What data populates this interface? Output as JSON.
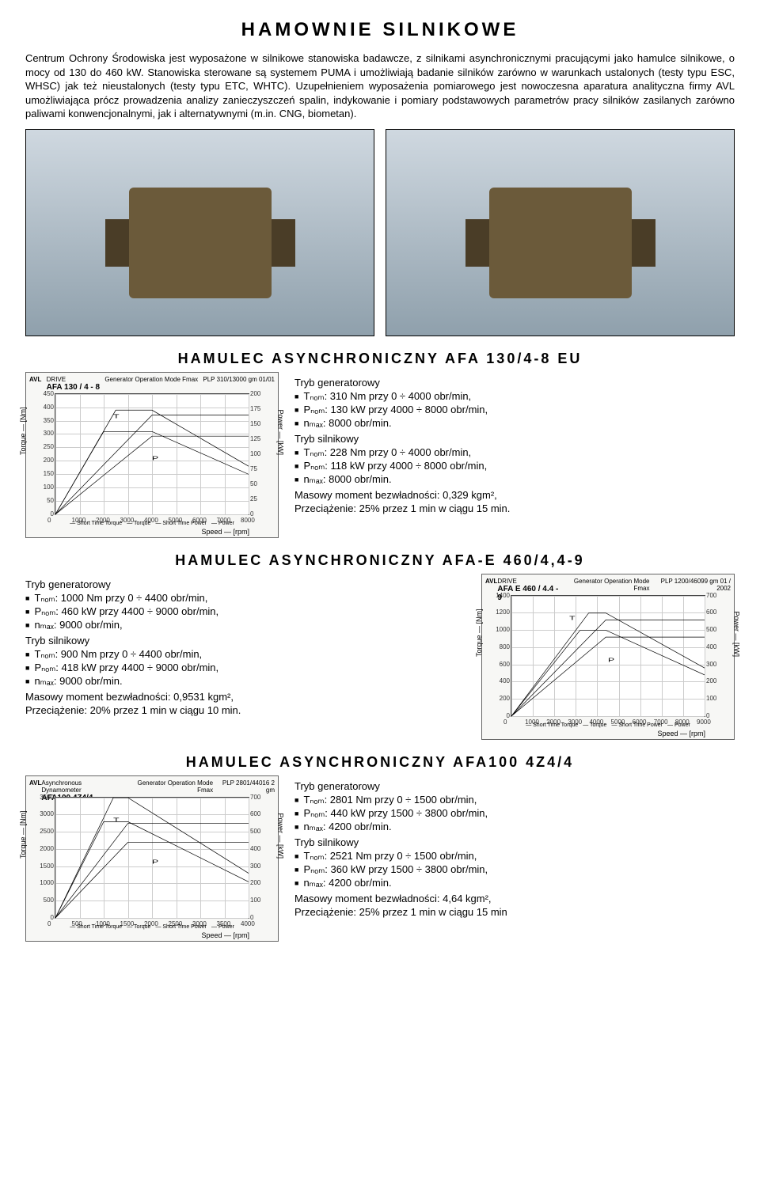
{
  "page_title": "HAMOWNIE SILNIKOWE",
  "intro": "Centrum Ochrony Środowiska jest wyposażone w silnikowe stanowiska badawcze, z silnikami asynchronicznymi pracującymi jako hamulce silnikowe, o mocy od 130 do 460 kW. Stanowiska sterowane są systemem PUMA i umożliwiają badanie silników zarówno w warunkach ustalonych (testy typu ESC, WHSC) jak też nieustalonych (testy typu ETC, WHTC). Uzupełnieniem wyposażenia pomiarowego jest nowoczesna aparatura analityczna firmy AVL umożliwiająca prócz prowadzenia analizy zanieczyszczeń spalin, indykowanie i pomiary podstawowych parametrów pracy silników zasilanych zarówno paliwami konwencjonalnymi, jak i alternatywnymi (m.in. CNG, biometan).",
  "section1": {
    "heading": "HAMULEC ASYNCHRONICZNY AFA 130/4-8 EU",
    "gen_header": "Tryb generatorowy",
    "gen_items": [
      "Tₙₒₘ: 310 Nm przy 0 ÷ 4000 obr/min,",
      "Pₙₒₘ: 130 kW przy 4000 ÷ 8000 obr/min,",
      "nₘₐₓ: 8000 obr/min."
    ],
    "mot_header": "Tryb silnikowy",
    "mot_items": [
      "Tₙₒₘ: 228 Nm przy 0 ÷ 4000 obr/min,",
      "Pₙₒₘ: 118 kW przy 4000 ÷ 8000 obr/min,",
      "nₘₐₓ: 8000 obr/min."
    ],
    "note1": "Masowy moment bezwładności: 0,329 kgm²,",
    "note2": "Przeciążenie: 25% przez 1 min w ciągu 15 min.",
    "chart": {
      "brand": "AVL",
      "drive": "DRIVE",
      "model": "AFA 130 / 4 - 8",
      "mode": "Generator Operation Mode Fmax",
      "code": "PLP 310/13000 gm 01/01",
      "ylabel_left": "Torque — [Nm]",
      "ylabel_right": "Power — [kW]",
      "xlabel": "Speed — [rpm]",
      "legend": [
        "— Short Time Torque",
        "— Torque",
        "— Short Time Power",
        "— Power"
      ],
      "xlim": [
        0,
        8000
      ],
      "xtick_step": 1000,
      "ylim_left": [
        0,
        450
      ],
      "ytick_left_step": 50,
      "ylim_right": [
        0,
        200
      ],
      "ytick_right_step": 25,
      "torque_series": [
        [
          0,
          0
        ],
        [
          2500,
          390
        ],
        [
          4000,
          390
        ],
        [
          8000,
          180
        ]
      ],
      "torque_short_series": [
        [
          0,
          0
        ],
        [
          2000,
          310
        ],
        [
          4000,
          310
        ],
        [
          8000,
          150
        ]
      ],
      "power_series": [
        [
          0,
          0
        ],
        [
          4000,
          130
        ],
        [
          8000,
          130
        ]
      ],
      "power_short_series": [
        [
          0,
          0
        ],
        [
          4000,
          165
        ],
        [
          8000,
          165
        ]
      ],
      "line_color": "#000",
      "grid_color": "#cccccc",
      "bg": "#ffffff"
    }
  },
  "section2": {
    "heading": "HAMULEC ASYNCHRONICZNY AFA-E 460/4,4-9",
    "gen_header": "Tryb generatorowy",
    "gen_items": [
      "Tₙₒₘ: 1000 Nm przy 0 ÷ 4400 obr/min,",
      "Pₙₒₘ: 460 kW przy 4400 ÷ 9000 obr/min,",
      "nₘₐₓ: 9000 obr/min,"
    ],
    "mot_header": "Tryb silnikowy",
    "mot_items": [
      "Tₙₒₘ: 900 Nm przy 0 ÷ 4400 obr/min,",
      "Pₙₒₘ: 418 kW przy 4400 ÷ 9000 obr/min,",
      "nₘₐₓ: 9000 obr/min."
    ],
    "note1": "Masowy moment bezwładności: 0,9531 kgm²,",
    "note2": "Przeciążenie: 20% przez 1 min w ciągu 10 min.",
    "chart": {
      "brand": "AVL",
      "drive": "DRIVE",
      "model": "AFA E 460 / 4.4 - 9",
      "mode": "Generator Operation Mode Fmax",
      "code": "PLP 1200/46099 gm 01 / 2002",
      "ylabel_left": "Torque — [Nm]",
      "ylabel_right": "Power — [kW]",
      "xlabel": "Speed — [rpm]",
      "legend": [
        "— Short Time Torque",
        "— Torque",
        "— Short Time Power",
        "— Power"
      ],
      "xlim": [
        0,
        9000
      ],
      "xtick_step": 1000,
      "ylim_left": [
        0,
        1400
      ],
      "ytick_left_step": 200,
      "ylim_right": [
        0,
        700
      ],
      "ytick_right_step": 100,
      "torque_series": [
        [
          0,
          0
        ],
        [
          3600,
          1200
        ],
        [
          4400,
          1200
        ],
        [
          9000,
          560
        ]
      ],
      "torque_short_series": [
        [
          0,
          0
        ],
        [
          3200,
          1000
        ],
        [
          4400,
          1000
        ],
        [
          9000,
          480
        ]
      ],
      "power_series": [
        [
          0,
          0
        ],
        [
          4400,
          460
        ],
        [
          9000,
          460
        ]
      ],
      "power_short_series": [
        [
          0,
          0
        ],
        [
          4400,
          560
        ],
        [
          9000,
          560
        ]
      ],
      "line_color": "#000",
      "grid_color": "#cccccc",
      "bg": "#ffffff"
    }
  },
  "section3": {
    "heading": "HAMULEC ASYNCHRONICZNY AFA100 4Z4/4",
    "gen_header": "Tryb generatorowy",
    "gen_items": [
      "Tₙₒₘ: 2801 Nm przy 0 ÷ 1500 obr/min,",
      "Pₙₒₘ: 440 kW przy 1500 ÷ 3800 obr/min,",
      "nₘₐₓ: 4200 obr/min."
    ],
    "mot_header": "Tryb silnikowy",
    "mot_items": [
      "Tₙₒₘ: 2521 Nm przy 0 ÷ 1500 obr/min,",
      "Pₙₒₘ: 360 kW przy 1500 ÷ 3800 obr/min,",
      "nₘₐₓ: 4200 obr/min."
    ],
    "note1": "Masowy moment bezwładności: 4,64 kgm²,",
    "note2": "Przeciążenie: 25% przez 1 min w ciągu 15 min",
    "chart": {
      "brand": "AVL",
      "drive": "Asynchronous Dynamometer",
      "model": "AFA100 4Z4/4",
      "mode": "Generator Operation Mode Fmax",
      "code": "PLP 2801/44016 2 gm",
      "ylabel_left": "Torque — [Nm]",
      "ylabel_right": "Power — [kW]",
      "xlabel": "Speed — [rpm]",
      "legend": [
        "— Short Time Torque",
        "— Torque",
        "— Short Time Power",
        "— Power"
      ],
      "xlim": [
        0,
        4000
      ],
      "xtick_step": 500,
      "ylim_left": [
        0,
        3500
      ],
      "ytick_left_step": 500,
      "ylim_right": [
        0,
        700
      ],
      "ytick_right_step": 100,
      "torque_series": [
        [
          0,
          0
        ],
        [
          1200,
          3500
        ],
        [
          1500,
          3500
        ],
        [
          4000,
          1300
        ]
      ],
      "torque_short_series": [
        [
          0,
          0
        ],
        [
          1000,
          2800
        ],
        [
          1500,
          2800
        ],
        [
          4000,
          1050
        ]
      ],
      "power_series": [
        [
          0,
          0
        ],
        [
          1500,
          440
        ],
        [
          4000,
          440
        ]
      ],
      "power_short_series": [
        [
          0,
          0
        ],
        [
          1500,
          550
        ],
        [
          4000,
          550
        ]
      ],
      "line_color": "#000",
      "grid_color": "#cccccc",
      "bg": "#ffffff"
    }
  }
}
